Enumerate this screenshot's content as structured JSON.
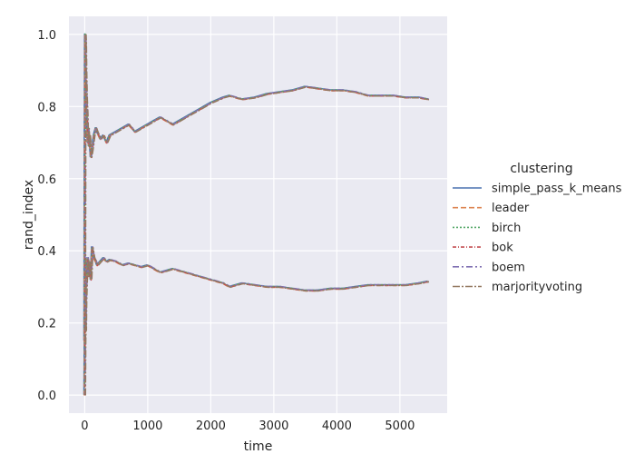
{
  "chart_data": {
    "type": "line",
    "title": "",
    "xlabel": "time",
    "ylabel": "rand_index",
    "xlim": [
      -250,
      5750
    ],
    "ylim": [
      -0.05,
      1.05
    ],
    "xticks": [
      "0",
      "1000",
      "2000",
      "3000",
      "4000",
      "5000"
    ],
    "yticks": [
      "0.0",
      "0.2",
      "0.4",
      "0.6",
      "0.8",
      "1.0"
    ],
    "grid": true,
    "legend_placement": "right",
    "legend_title": "clustering",
    "series": [
      {
        "name": "simple_pass_k_means",
        "color": "#4c72b0",
        "dash": "solid"
      },
      {
        "name": "leader",
        "color": "#dd8452",
        "dash": "dashed"
      },
      {
        "name": "birch",
        "color": "#55a868",
        "dash": "dotted"
      },
      {
        "name": "bok",
        "color": "#c44e52",
        "dash": "dashdot-short"
      },
      {
        "name": "boem",
        "color": "#8172b3",
        "dash": "dashdot"
      },
      {
        "name": "marjorityvoting",
        "color": "#937860",
        "dash": "dashdot-long"
      }
    ],
    "upper_curve": {
      "x": [
        0,
        5,
        10,
        15,
        20,
        30,
        40,
        50,
        60,
        70,
        80,
        100,
        120,
        150,
        180,
        200,
        250,
        300,
        350,
        400,
        500,
        600,
        700,
        800,
        900,
        1000,
        1100,
        1200,
        1300,
        1400,
        1500,
        1700,
        2000,
        2200,
        2300,
        2500,
        2700,
        2900,
        3100,
        3300,
        3500,
        3700,
        3900,
        4100,
        4300,
        4500,
        4700,
        4900,
        5100,
        5300,
        5450
      ],
      "y": [
        0.15,
        0.7,
        1.0,
        0.98,
        0.9,
        0.82,
        0.78,
        0.7,
        0.74,
        0.69,
        0.72,
        0.66,
        0.68,
        0.72,
        0.74,
        0.73,
        0.71,
        0.72,
        0.7,
        0.72,
        0.73,
        0.74,
        0.75,
        0.73,
        0.74,
        0.75,
        0.76,
        0.77,
        0.76,
        0.75,
        0.76,
        0.78,
        0.81,
        0.825,
        0.83,
        0.82,
        0.825,
        0.835,
        0.84,
        0.845,
        0.855,
        0.85,
        0.845,
        0.845,
        0.84,
        0.83,
        0.83,
        0.83,
        0.825,
        0.825,
        0.82
      ]
    },
    "lower_curve": {
      "x": [
        0,
        5,
        10,
        15,
        20,
        30,
        40,
        50,
        60,
        70,
        80,
        100,
        120,
        150,
        180,
        200,
        250,
        300,
        350,
        400,
        500,
        600,
        700,
        800,
        900,
        1000,
        1100,
        1200,
        1300,
        1400,
        1500,
        1700,
        2000,
        2200,
        2300,
        2500,
        2700,
        2900,
        3100,
        3300,
        3500,
        3700,
        3900,
        4100,
        4300,
        4500,
        4700,
        4900,
        5100,
        5300,
        5450
      ],
      "y": [
        0.0,
        0.15,
        0.2,
        0.18,
        0.26,
        0.32,
        0.36,
        0.38,
        0.33,
        0.35,
        0.37,
        0.32,
        0.41,
        0.38,
        0.37,
        0.36,
        0.37,
        0.38,
        0.37,
        0.375,
        0.37,
        0.36,
        0.365,
        0.36,
        0.355,
        0.36,
        0.35,
        0.34,
        0.345,
        0.35,
        0.345,
        0.335,
        0.32,
        0.31,
        0.3,
        0.31,
        0.305,
        0.3,
        0.3,
        0.295,
        0.29,
        0.29,
        0.295,
        0.295,
        0.3,
        0.305,
        0.305,
        0.305,
        0.305,
        0.31,
        0.315
      ]
    }
  }
}
